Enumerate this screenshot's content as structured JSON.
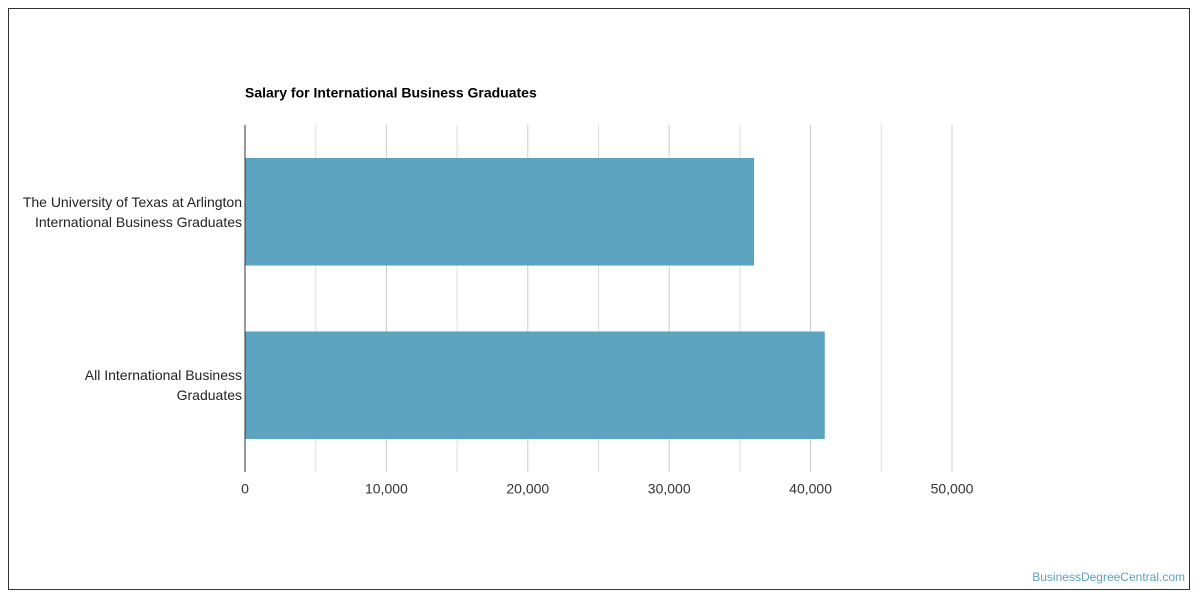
{
  "chart_data": {
    "type": "bar",
    "orientation": "horizontal",
    "title": "Salary for International Business Graduates",
    "categories": [
      "The University of Texas at Arlington International Business Graduates",
      "All International Business Graduates"
    ],
    "values": [
      36000,
      41000
    ],
    "color": "#5ca3bf",
    "xlim": [
      0,
      50000
    ],
    "xticks": [
      0,
      {
        "value": 10000,
        "label": "10,000"
      },
      {
        "value": 20000,
        "label": "20,000"
      },
      {
        "value": 30000,
        "label": "30,000"
      },
      {
        "value": 40000,
        "label": "40,000"
      },
      {
        "value": 50000,
        "label": "50,000"
      }
    ],
    "minor_gridlines": [
      5000,
      15000,
      25000,
      35000,
      45000
    ],
    "grid": true
  },
  "footer": {
    "source": "BusinessDegreeCentral.com"
  }
}
